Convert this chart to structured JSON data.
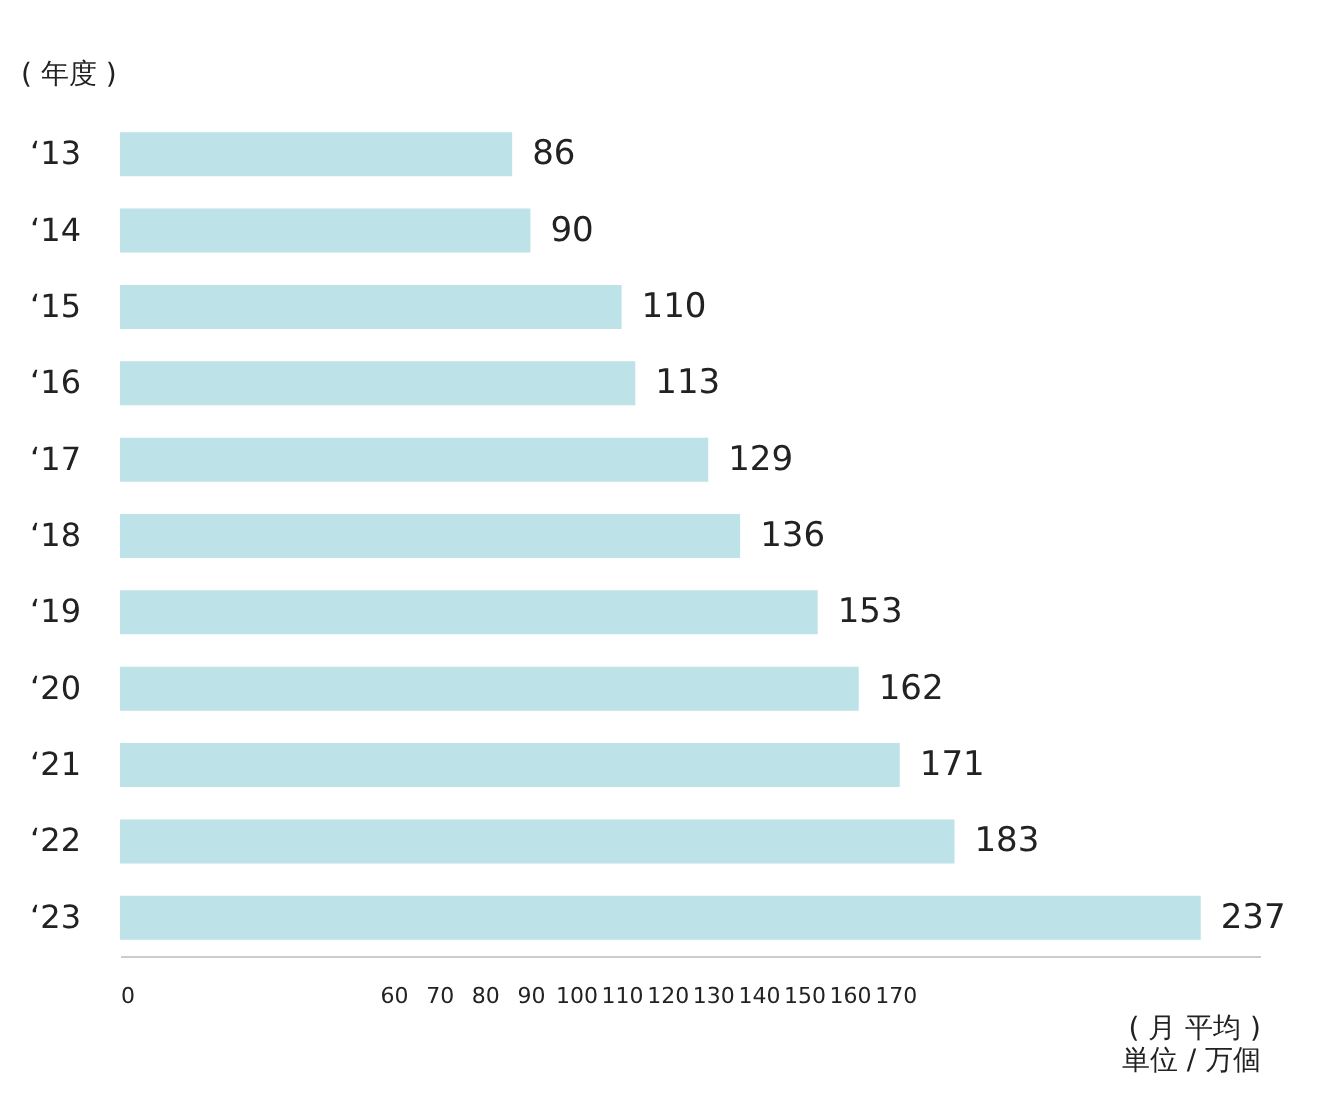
{
  "chart_data": {
    "type": "bar",
    "orientation": "horizontal",
    "ylabel": "( 年度 )",
    "xlabel": "単位 / 万個",
    "annotations": [
      "( 月 平均 )"
    ],
    "categories": [
      "‘13",
      "‘14",
      "‘15",
      "‘16",
      "‘17",
      "‘18",
      "‘19",
      "‘20",
      "‘21",
      "‘22",
      "‘23"
    ],
    "values": [
      86,
      90,
      110,
      113,
      129,
      136,
      153,
      162,
      171,
      183,
      237
    ],
    "color": "#bde2e7",
    "data_labels": true,
    "xlim": [
      0,
      250
    ],
    "xticks": [
      0,
      60,
      70,
      80,
      90,
      100,
      110,
      120,
      130,
      140,
      150,
      160,
      170
    ],
    "grid": false
  }
}
